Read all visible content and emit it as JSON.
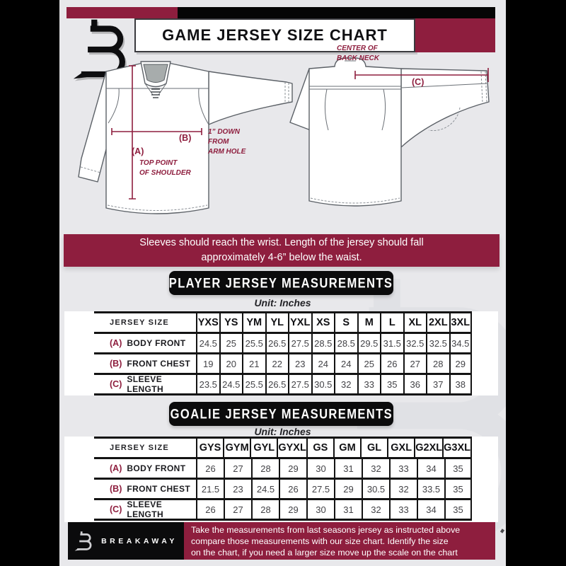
{
  "header": {
    "title": "GAME JERSEY SIZE CHART"
  },
  "colors": {
    "maroon": "#8e1e3e",
    "background_gray": "#e8e8eb",
    "black": "#000000"
  },
  "diagram": {
    "label_a": "(A)",
    "label_b": "(B)",
    "label_c": "(C)",
    "a_note_line1": "TOP POINT",
    "a_note_line2": "OF SHOULDER",
    "b_note_line1": "1” DOWN",
    "b_note_line2": "FROM",
    "b_note_line3": "ARM HOLE",
    "c_note_line1": "CENTER OF",
    "c_note_line2": "BACK NECK"
  },
  "banner": {
    "line1": "Sleeves should reach the wrist. Length of the jersey should fall",
    "line2": "approximately 4-6” below the waist."
  },
  "player_section": {
    "title": "PLAYER JERSEY MEASUREMENTS",
    "unit": "Unit: Inches"
  },
  "goalie_section": {
    "title": "GOALIE JERSEY MEASUREMENTS",
    "unit": "Unit: Inches"
  },
  "player_table": {
    "corner_label": "JERSEY SIZE",
    "columns": [
      "YXS",
      "YS",
      "YM",
      "YL",
      "YXL",
      "XS",
      "S",
      "M",
      "L",
      "XL",
      "2XL",
      "3XL"
    ],
    "rows": [
      {
        "prefix": "(A)",
        "label": "BODY FRONT",
        "values": [
          "24.5",
          "25",
          "25.5",
          "26.5",
          "27.5",
          "28.5",
          "28.5",
          "29.5",
          "31.5",
          "32.5",
          "32.5",
          "34.5"
        ]
      },
      {
        "prefix": "(B)",
        "label": "FRONT CHEST",
        "values": [
          "19",
          "20",
          "21",
          "22",
          "23",
          "24",
          "24",
          "25",
          "26",
          "27",
          "28",
          "29"
        ]
      },
      {
        "prefix": "(C)",
        "label": "SLEEVE LENGTH",
        "values": [
          "23.5",
          "24.5",
          "25.5",
          "26.5",
          "27.5",
          "30.5",
          "32",
          "33",
          "35",
          "36",
          "37",
          "38"
        ]
      }
    ]
  },
  "goalie_table": {
    "corner_label": "JERSEY SIZE",
    "columns": [
      "GYS",
      "GYM",
      "GYL",
      "GYXL",
      "GS",
      "GM",
      "GL",
      "GXL",
      "G2XL",
      "G3XL"
    ],
    "rows": [
      {
        "prefix": "(A)",
        "label": "BODY FRONT",
        "values": [
          "26",
          "27",
          "28",
          "29",
          "30",
          "31",
          "32",
          "33",
          "34",
          "35"
        ]
      },
      {
        "prefix": "(B)",
        "label": "FRONT CHEST",
        "values": [
          "21.5",
          "23",
          "24.5",
          "26",
          "27.5",
          "29",
          "30.5",
          "32",
          "33.5",
          "35"
        ]
      },
      {
        "prefix": "(C)",
        "label": "SLEEVE LENGTH",
        "values": [
          "26",
          "27",
          "28",
          "29",
          "30",
          "31",
          "32",
          "33",
          "34",
          "35"
        ]
      }
    ]
  },
  "footer": {
    "brand": "BREAKAWAY",
    "line1": "Take the measurements from last seasons jersey as instructed above",
    "line2": "compare those measurements  with our size chart. Identify the size",
    "line3": "on the chart, if you need a larger size move up the scale on the chart"
  }
}
